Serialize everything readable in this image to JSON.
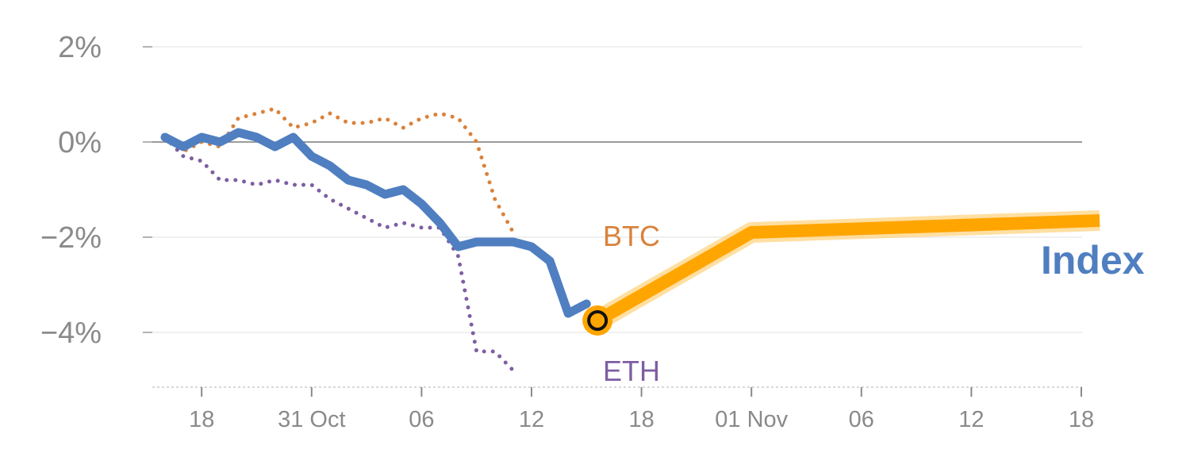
{
  "chart_data": {
    "type": "line",
    "xlim": [
      0,
      52
    ],
    "ylim": [
      -5.2,
      2.2
    ],
    "y_ticks": [
      {
        "value": 2,
        "label": "2%"
      },
      {
        "value": 0,
        "label": "0%"
      },
      {
        "value": -2,
        "label": "−2%"
      },
      {
        "value": -4,
        "label": "−4%"
      }
    ],
    "x_ticks": [
      {
        "value": 2,
        "label": "18"
      },
      {
        "value": 8,
        "label": "31 Oct"
      },
      {
        "value": 14,
        "label": "06"
      },
      {
        "value": 20,
        "label": "12"
      },
      {
        "value": 26,
        "label": "18"
      },
      {
        "value": 32,
        "label": "01 Nov"
      },
      {
        "value": 38,
        "label": "06"
      },
      {
        "value": 44,
        "label": "12"
      },
      {
        "value": 50,
        "label": "18"
      }
    ],
    "grid": true,
    "series": [
      {
        "name": "BTC",
        "style": "dotted",
        "color": "#d9823b",
        "x": [
          0,
          1,
          2,
          3,
          4,
          5,
          6,
          7,
          8,
          9,
          10,
          11,
          12,
          13,
          14,
          15,
          16,
          17,
          18,
          19,
          20,
          21,
          22,
          23
        ],
        "y": [
          0.1,
          -0.2,
          0.0,
          -0.1,
          0.5,
          0.6,
          0.7,
          0.3,
          0.4,
          0.6,
          0.4,
          0.4,
          0.5,
          0.3,
          0.5,
          0.6,
          0.5,
          0.0,
          -1.2,
          -1.9,
          null,
          null,
          null,
          null
        ]
      },
      {
        "name": "ETH",
        "style": "dotted",
        "color": "#7e5ea3",
        "x": [
          0,
          1,
          2,
          3,
          4,
          5,
          6,
          7,
          8,
          9,
          10,
          11,
          12,
          13,
          14,
          15,
          16,
          17,
          18,
          19,
          20,
          21,
          22,
          23
        ],
        "y": [
          0.1,
          -0.3,
          -0.4,
          -0.8,
          -0.8,
          -0.9,
          -0.8,
          -0.9,
          -0.9,
          -1.2,
          -1.4,
          -1.6,
          -1.8,
          -1.7,
          -1.8,
          -1.8,
          -2.4,
          -4.4,
          -4.4,
          -4.8,
          null,
          null,
          null,
          null
        ]
      },
      {
        "name": "Index",
        "style": "solid",
        "color": "#4f7fc1",
        "x": [
          0,
          1,
          2,
          3,
          4,
          5,
          6,
          7,
          8,
          9,
          10,
          11,
          12,
          13,
          14,
          15,
          16,
          17,
          18,
          19,
          20,
          21,
          22,
          23
        ],
        "y": [
          0.1,
          -0.1,
          0.1,
          0.0,
          0.2,
          0.1,
          -0.1,
          0.1,
          -0.3,
          -0.5,
          -0.8,
          -0.9,
          -1.1,
          -1.0,
          -1.3,
          -1.7,
          -2.2,
          -2.1,
          -2.1,
          -2.1,
          -2.2,
          -2.5,
          -3.6,
          -3.4
        ]
      }
    ],
    "forecast": {
      "series": "Index",
      "color": "#ffa500",
      "x": [
        23.6,
        32,
        51
      ],
      "y": [
        -3.75,
        -1.9,
        -1.65
      ]
    },
    "marker": {
      "x": 23.6,
      "y": -3.75
    },
    "labels": {
      "btc": "BTC",
      "eth": "ETH",
      "index": "Index"
    }
  }
}
